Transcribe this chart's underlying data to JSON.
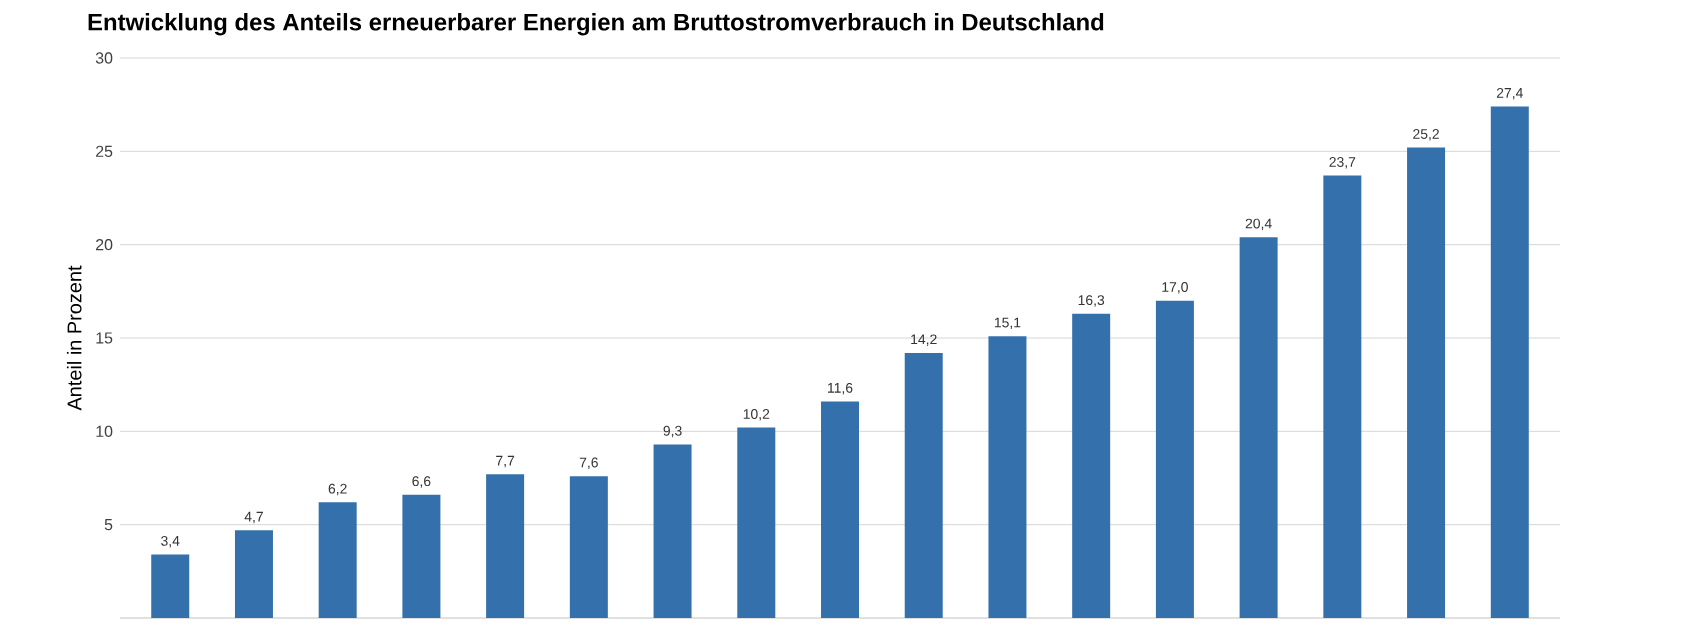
{
  "chart_data": {
    "type": "bar",
    "title": "Entwicklung des Anteils erneuerbarer Energien am Bruttostromverbrauch in Deutschland",
    "ylabel": "Anteil in Prozent",
    "categories": [
      null,
      null,
      null,
      null,
      null,
      null,
      null,
      null,
      null,
      null,
      null,
      null,
      null,
      null,
      null,
      null,
      null
    ],
    "values": [
      3.4,
      4.7,
      6.2,
      6.6,
      7.7,
      7.6,
      9.3,
      10.2,
      11.6,
      14.2,
      15.1,
      16.3,
      17.0,
      20.4,
      23.7,
      25.2,
      27.4
    ],
    "value_labels": [
      "3,4",
      "4,7",
      "6,2",
      "6,6",
      "7,7",
      "7,6",
      "9,3",
      "10,2",
      "11,6",
      "14,2",
      "15,1",
      "16,3",
      "17,0",
      "20,4",
      "23,7",
      "25,2",
      "27,4"
    ],
    "color": "#3470ab",
    "ylim": [
      0,
      30
    ],
    "yticks": [
      5,
      10,
      15,
      20,
      25,
      30
    ],
    "grid": "y"
  }
}
